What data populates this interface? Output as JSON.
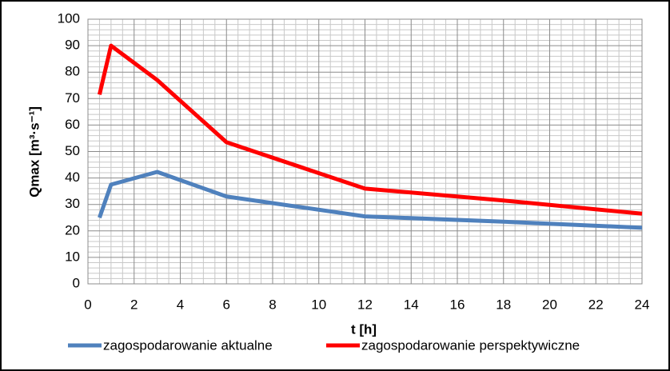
{
  "chart_data": {
    "type": "line",
    "x_label": "t [h]",
    "y_label": "Qmax [m³·s⁻¹]",
    "series": [
      {
        "name": "zagospodarowanie aktualne",
        "color": "#4f81bd",
        "x": [
          0.5,
          1,
          3,
          6,
          12,
          18,
          24
        ],
        "values": [
          25,
          37.5,
          42.3,
          33,
          25.5,
          23.5,
          21.2
        ]
      },
      {
        "name": "zagospodarowanie perspektywiczne",
        "color": "#ff0000",
        "x": [
          0.5,
          1,
          3,
          6,
          12,
          18,
          24
        ],
        "values": [
          71.5,
          90,
          77,
          53.5,
          36,
          31.5,
          26.5
        ]
      }
    ],
    "xlim": [
      0,
      24
    ],
    "xticks": [
      0,
      2,
      4,
      6,
      8,
      10,
      12,
      14,
      16,
      18,
      20,
      22,
      24
    ],
    "ylim": [
      0,
      100
    ],
    "yticks": [
      0,
      10,
      20,
      30,
      40,
      50,
      60,
      70,
      80,
      90,
      100
    ],
    "grid": true,
    "legend": "bottom"
  }
}
